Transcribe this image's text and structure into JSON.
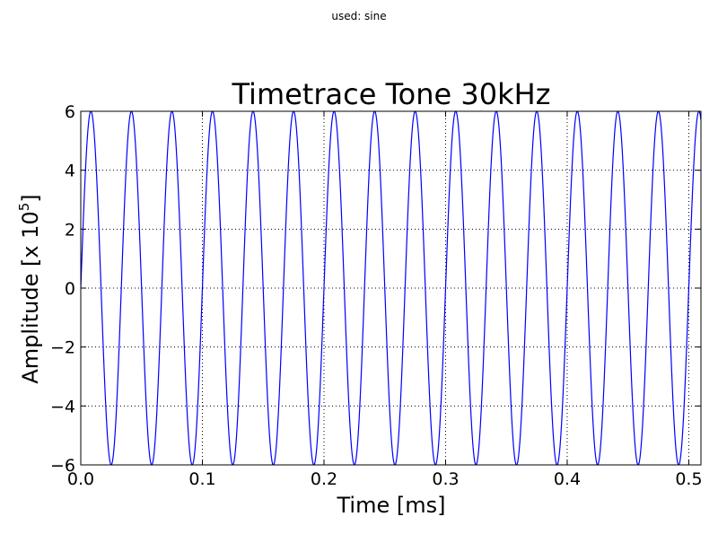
{
  "header_note": "used: sine",
  "chart_data": {
    "type": "line",
    "title": "Timetrace Tone 30kHz",
    "xlabel": "Time [ms]",
    "ylabel_main": "Amplitude [x 10",
    "ylabel_exp": "5",
    "ylabel_close": "]",
    "xlim": [
      0.0,
      0.51
    ],
    "ylim": [
      -6,
      6
    ],
    "xticks": [
      "0.0",
      "0.1",
      "0.2",
      "0.3",
      "0.4",
      "0.5"
    ],
    "xtick_values": [
      0.0,
      0.1,
      0.2,
      0.3,
      0.4,
      0.5
    ],
    "yticks": [
      "−6",
      "−4",
      "−2",
      "0",
      "2",
      "4",
      "6"
    ],
    "ytick_values": [
      -6,
      -4,
      -2,
      0,
      2,
      4,
      6
    ],
    "grid": true,
    "series": [
      {
        "waveform": "sine",
        "frequency_khz": 30,
        "amplitude": 6,
        "x_start": 0.0,
        "x_end": 0.51,
        "color": "#0000ff"
      }
    ]
  }
}
